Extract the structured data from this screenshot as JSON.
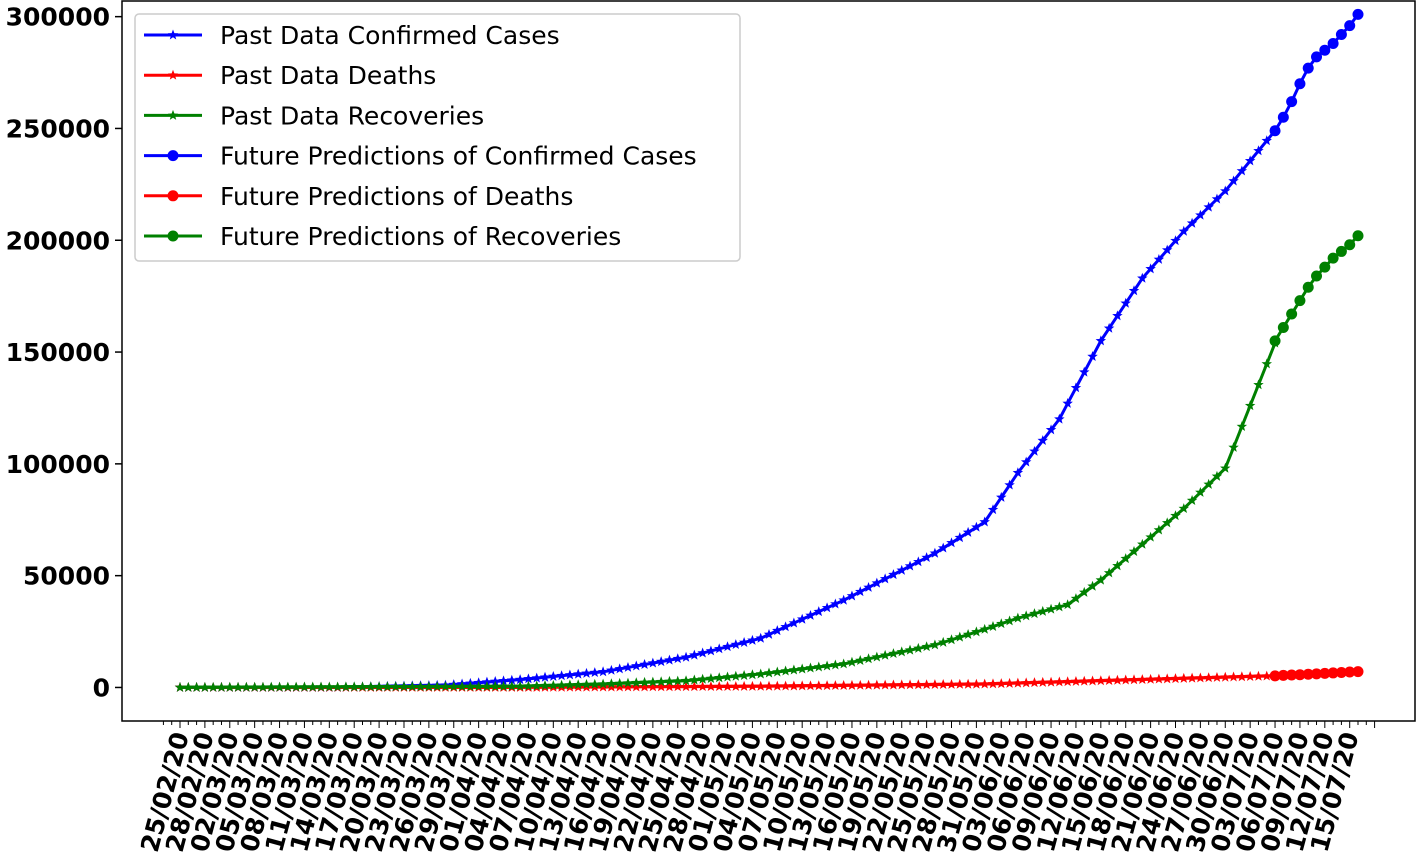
{
  "chart_data": {
    "type": "line",
    "title": "",
    "xlabel": "",
    "ylabel": "",
    "ylim": [
      -15000,
      307000
    ],
    "yticks": [
      0,
      50000,
      100000,
      150000,
      200000,
      250000,
      300000
    ],
    "ytick_labels": [
      "0",
      "50000",
      "100000",
      "150000",
      "200000",
      "250000",
      "300000"
    ],
    "x_start": "2020-02-25",
    "x_end_past": "2020-07-06",
    "x_end_future": "2020-07-16",
    "xtick_labels": [
      "25/02/20",
      "28/02/20",
      "02/03/20",
      "05/03/20",
      "08/03/20",
      "11/03/20",
      "14/03/20",
      "17/03/20",
      "20/03/20",
      "23/03/20",
      "26/03/20",
      "29/03/20",
      "01/04/20",
      "04/04/20",
      "07/04/20",
      "10/04/20",
      "13/04/20",
      "16/04/20",
      "19/04/20",
      "22/04/20",
      "25/04/20",
      "28/04/20",
      "01/05/20",
      "04/05/20",
      "07/05/20",
      "10/05/20",
      "13/05/20",
      "16/05/20",
      "19/05/20",
      "22/05/20",
      "25/05/20",
      "28/05/20",
      "31/05/20",
      "03/06/20",
      "06/06/20",
      "09/06/20",
      "12/06/20",
      "15/06/20",
      "18/06/20",
      "21/06/20",
      "24/06/20",
      "27/06/20",
      "30/06/20",
      "03/07/20",
      "06/07/20",
      "09/07/20",
      "12/07/20",
      "15/07/20"
    ],
    "grid": false,
    "legend_position": "top-left",
    "series": [
      {
        "name": "Past Data Confirmed Cases",
        "color": "#0000ff",
        "marker": "star",
        "x": [
          "2020-02-25",
          "2020-03-15",
          "2020-03-28",
          "2020-04-06",
          "2020-04-16",
          "2020-04-26",
          "2020-05-05",
          "2020-05-15",
          "2020-05-26",
          "2020-06-01",
          "2020-06-05",
          "2020-06-10",
          "2020-06-15",
          "2020-06-20",
          "2020-06-25",
          "2020-06-30",
          "2020-07-06"
        ],
        "y": [
          0,
          0,
          1000,
          3500,
          7000,
          13500,
          22000,
          39000,
          60000,
          74000,
          96000,
          120000,
          155000,
          183000,
          204000,
          222000,
          249000
        ]
      },
      {
        "name": "Past Data Deaths",
        "color": "#ff0000",
        "marker": "star",
        "x": [
          "2020-02-25",
          "2020-04-06",
          "2020-05-05",
          "2020-06-01",
          "2020-06-15",
          "2020-07-06"
        ],
        "y": [
          0,
          0,
          500,
          1500,
          3000,
          5200
        ]
      },
      {
        "name": "Past Data Recoveries",
        "color": "#008000",
        "marker": "star",
        "x": [
          "2020-02-25",
          "2020-04-06",
          "2020-04-16",
          "2020-04-26",
          "2020-05-05",
          "2020-05-15",
          "2020-05-26",
          "2020-06-01",
          "2020-06-05",
          "2020-06-11",
          "2020-06-15",
          "2020-06-20",
          "2020-06-25",
          "2020-06-30",
          "2020-07-06"
        ],
        "y": [
          0,
          500,
          1500,
          3000,
          6000,
          10500,
          19000,
          26000,
          31000,
          37000,
          48000,
          64000,
          80000,
          98000,
          154000
        ]
      },
      {
        "name": "Future Predictions of Confirmed Cases",
        "color": "#0000ff",
        "marker": "circle",
        "x": [
          "2020-07-06",
          "2020-07-07",
          "2020-07-08",
          "2020-07-09",
          "2020-07-10",
          "2020-07-11",
          "2020-07-12",
          "2020-07-13",
          "2020-07-14",
          "2020-07-15",
          "2020-07-16"
        ],
        "y": [
          249000,
          255000,
          262000,
          270000,
          277000,
          282000,
          285000,
          288000,
          292000,
          296000,
          301000
        ]
      },
      {
        "name": "Future Predictions of Deaths",
        "color": "#ff0000",
        "marker": "circle",
        "x": [
          "2020-07-06",
          "2020-07-07",
          "2020-07-08",
          "2020-07-09",
          "2020-07-10",
          "2020-07-11",
          "2020-07-12",
          "2020-07-13",
          "2020-07-14",
          "2020-07-15",
          "2020-07-16"
        ],
        "y": [
          5200,
          5400,
          5600,
          5700,
          5900,
          6100,
          6300,
          6500,
          6700,
          6900,
          7100
        ]
      },
      {
        "name": "Future Predictions of Recoveries",
        "color": "#008000",
        "marker": "circle",
        "x": [
          "2020-07-06",
          "2020-07-07",
          "2020-07-08",
          "2020-07-09",
          "2020-07-10",
          "2020-07-11",
          "2020-07-12",
          "2020-07-13",
          "2020-07-14",
          "2020-07-15",
          "2020-07-16"
        ],
        "y": [
          155000,
          161000,
          167000,
          173000,
          179000,
          184000,
          188000,
          192000,
          195000,
          198000,
          202000
        ]
      }
    ]
  }
}
